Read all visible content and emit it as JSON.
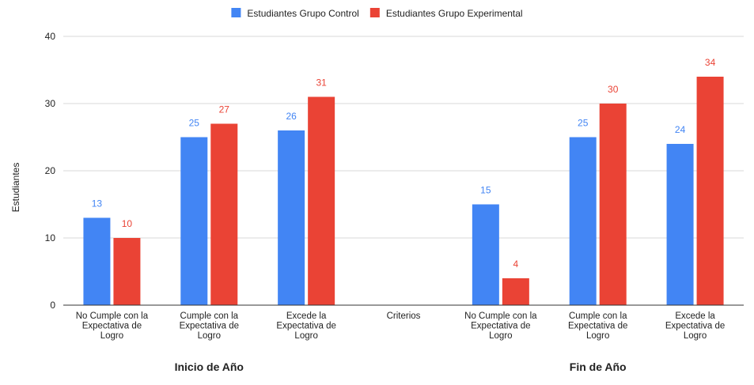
{
  "chart_data": {
    "type": "bar",
    "ylabel": "Estudiantes",
    "ylim": [
      0,
      40
    ],
    "yticks": [
      0,
      10,
      20,
      30,
      40
    ],
    "grid": true,
    "legend_position": "top",
    "categories": [
      [
        "No Cumple con la",
        "Expectativa de",
        "Logro"
      ],
      [
        "Cumple con la",
        "Expectativa de",
        "Logro"
      ],
      [
        "Excede la",
        "Expectativa de",
        "Logro"
      ],
      [
        "Criterios"
      ],
      [
        "No Cumple con la",
        "Expectativa de",
        "Logro"
      ],
      [
        "Cumple con la",
        "Expectativa de",
        "Logro"
      ],
      [
        "Excede la",
        "Expectativa de",
        "Logro"
      ]
    ],
    "groups": [
      {
        "label": "Inicio de Año",
        "category_indices": [
          0,
          1,
          2
        ]
      },
      {
        "label": "Fin de Año",
        "category_indices": [
          4,
          5,
          6
        ]
      }
    ],
    "series": [
      {
        "name": "Estudiantes Grupo Control",
        "color": "#4285f4",
        "values": [
          13,
          25,
          26,
          null,
          15,
          25,
          24
        ]
      },
      {
        "name": "Estudiantes Grupo Experimental",
        "color": "#ea4335",
        "values": [
          10,
          27,
          31,
          null,
          4,
          30,
          34
        ]
      }
    ]
  }
}
